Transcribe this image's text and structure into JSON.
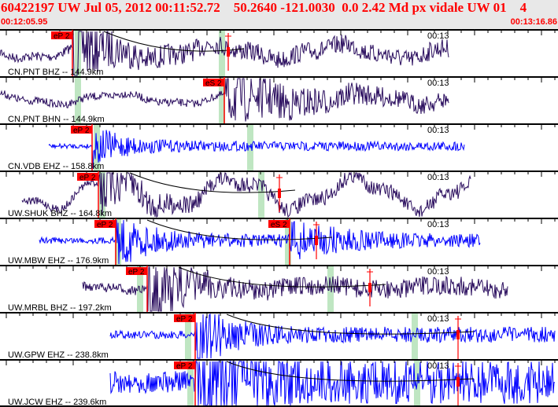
{
  "header": {
    "title": "60422197 UW Jul 05, 2012 00:11:52.72    50.2640 -121.0030  0.0 2.42 Md px vidale UW 01    4",
    "start_time": "00:12:05.95",
    "end_time": "00:13:16.86",
    "time_mark": "00:13"
  },
  "colors": {
    "header_text": "#ff0000",
    "pick": "#ff0000",
    "window": "#bfe6c2",
    "trace_bh": "#2a0d5e",
    "trace_eh": "#0000ff"
  },
  "traces": [
    {
      "label": "CN.PNT BHZ -- 144.9km",
      "color": "#2a0d5e",
      "picks": [
        "eP 2"
      ]
    },
    {
      "label": "CN.PNT BHN -- 144.9km",
      "color": "#2a0d5e",
      "picks": [
        "eS 2"
      ]
    },
    {
      "label": "CN.VDB EHZ -- 158.8km",
      "color": "#0000ff",
      "picks": [
        "eP 2"
      ]
    },
    {
      "label": "UW.SHUK BHZ -- 164.8km",
      "color": "#2a0d5e",
      "picks": [
        "eP 2"
      ]
    },
    {
      "label": "UW.MBW EHZ -- 176.9km",
      "color": "#0000ff",
      "picks": [
        "eP 2",
        "eS 2"
      ]
    },
    {
      "label": "UW.MRBL BHZ -- 197.2km",
      "color": "#2a0d5e",
      "picks": [
        "eP 2"
      ]
    },
    {
      "label": "UW.GPW EHZ -- 238.8km",
      "color": "#0000ff",
      "picks": [
        "eP 2"
      ]
    },
    {
      "label": "UW.JCW EHZ -- 239.6km",
      "color": "#0000ff",
      "picks": [
        "eP 2"
      ]
    }
  ]
}
